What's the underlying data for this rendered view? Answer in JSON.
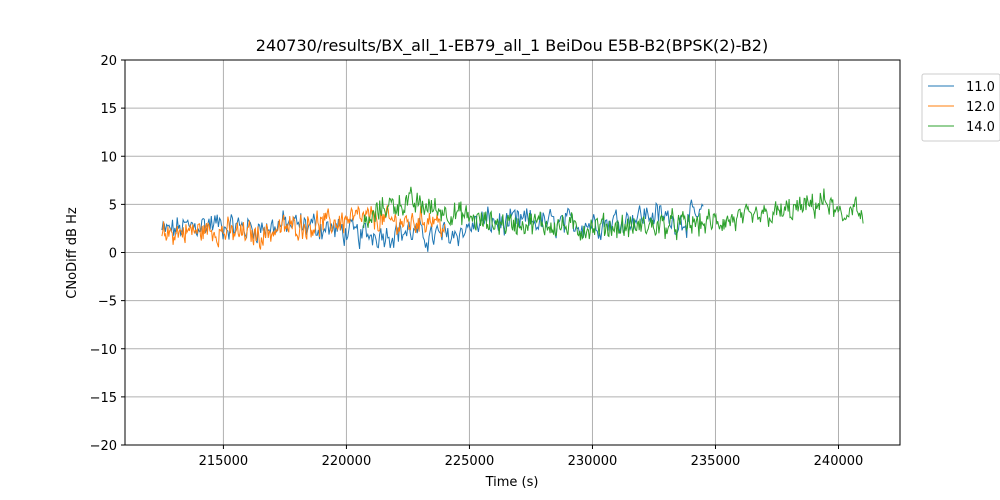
{
  "chart_data": {
    "type": "line",
    "title": "240730/results/BX_all_1-EB79_all_1 BeiDou E5B-B2(BPSK(2)-B2)",
    "xlabel": "Time (s)",
    "ylabel": "CNoDiff dB Hz",
    "xlim": [
      211000,
      242500
    ],
    "ylim": [
      -20,
      20
    ],
    "xticks": [
      215000,
      220000,
      225000,
      230000,
      235000,
      240000
    ],
    "xtick_labels": [
      "215000",
      "220000",
      "225000",
      "230000",
      "235000",
      "240000"
    ],
    "yticks": [
      -20,
      -15,
      -10,
      -5,
      0,
      5,
      10,
      15,
      20
    ],
    "ytick_labels": [
      "−20",
      "−15",
      "−10",
      "−5",
      "0",
      "5",
      "10",
      "15",
      "20"
    ],
    "grid": true,
    "legend_position": "outside-top-right",
    "series": [
      {
        "name": "11.0",
        "color": "#1f77b4",
        "x": [
          212500,
          213500,
          214500,
          215500,
          216500,
          217500,
          218500,
          219500,
          220500,
          221500,
          222500,
          223500,
          224500,
          225500,
          226500,
          227500,
          228500,
          229500,
          230500,
          231500,
          232500,
          233500,
          234500
        ],
        "y": [
          2.2,
          2.6,
          3.0,
          2.7,
          2.5,
          2.9,
          2.8,
          2.4,
          1.8,
          2.0,
          2.2,
          1.6,
          2.0,
          3.2,
          3.0,
          3.3,
          2.9,
          3.0,
          3.1,
          3.6,
          4.0,
          3.2,
          3.9
        ],
        "noise": 1.1,
        "segments": 460
      },
      {
        "name": "12.0",
        "color": "#ff7f0e",
        "x": [
          212500,
          213500,
          214500,
          215500,
          216500,
          217500,
          218500,
          219500,
          220500,
          221500,
          222500,
          223500,
          224000
        ],
        "y": [
          1.9,
          2.2,
          2.3,
          2.0,
          1.8,
          2.6,
          2.9,
          3.1,
          3.6,
          3.4,
          3.0,
          3.6,
          2.5
        ],
        "noise": 1.0,
        "segments": 330
      },
      {
        "name": "14.0",
        "color": "#2ca02c",
        "x": [
          220700,
          221500,
          222500,
          223500,
          224500,
          225500,
          226500,
          227500,
          228500,
          229500,
          230500,
          231500,
          232500,
          233500,
          234500,
          235500,
          236500,
          237500,
          238500,
          239500,
          240200,
          240600,
          241000
        ],
        "y": [
          2.5,
          4.8,
          5.2,
          4.6,
          4.0,
          3.2,
          3.0,
          3.1,
          2.8,
          2.5,
          2.7,
          2.6,
          2.8,
          2.9,
          3.0,
          3.3,
          3.5,
          4.0,
          4.6,
          5.3,
          3.2,
          5.5,
          3.0
        ],
        "noise": 1.0,
        "segments": 560
      }
    ]
  }
}
